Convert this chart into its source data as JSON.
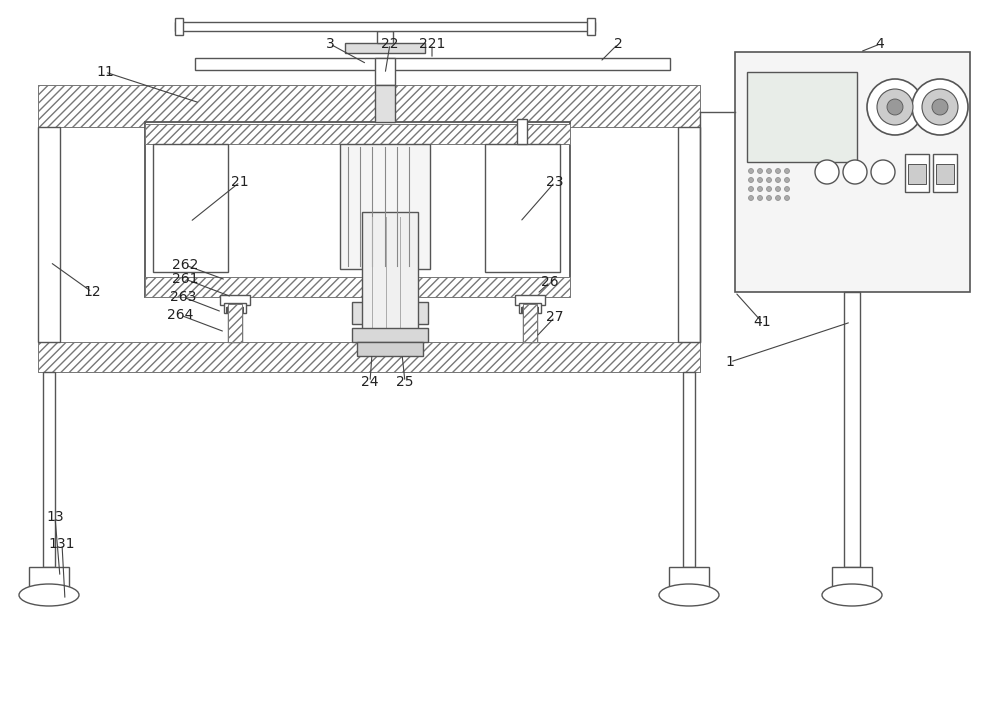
{
  "lw": 1.0,
  "lc": "#555555",
  "fc_white": "#ffffff",
  "fc_light": "#f0f0f0",
  "fc_hatch": "#f0f0f0",
  "hatch": "////",
  "font_size": 10
}
